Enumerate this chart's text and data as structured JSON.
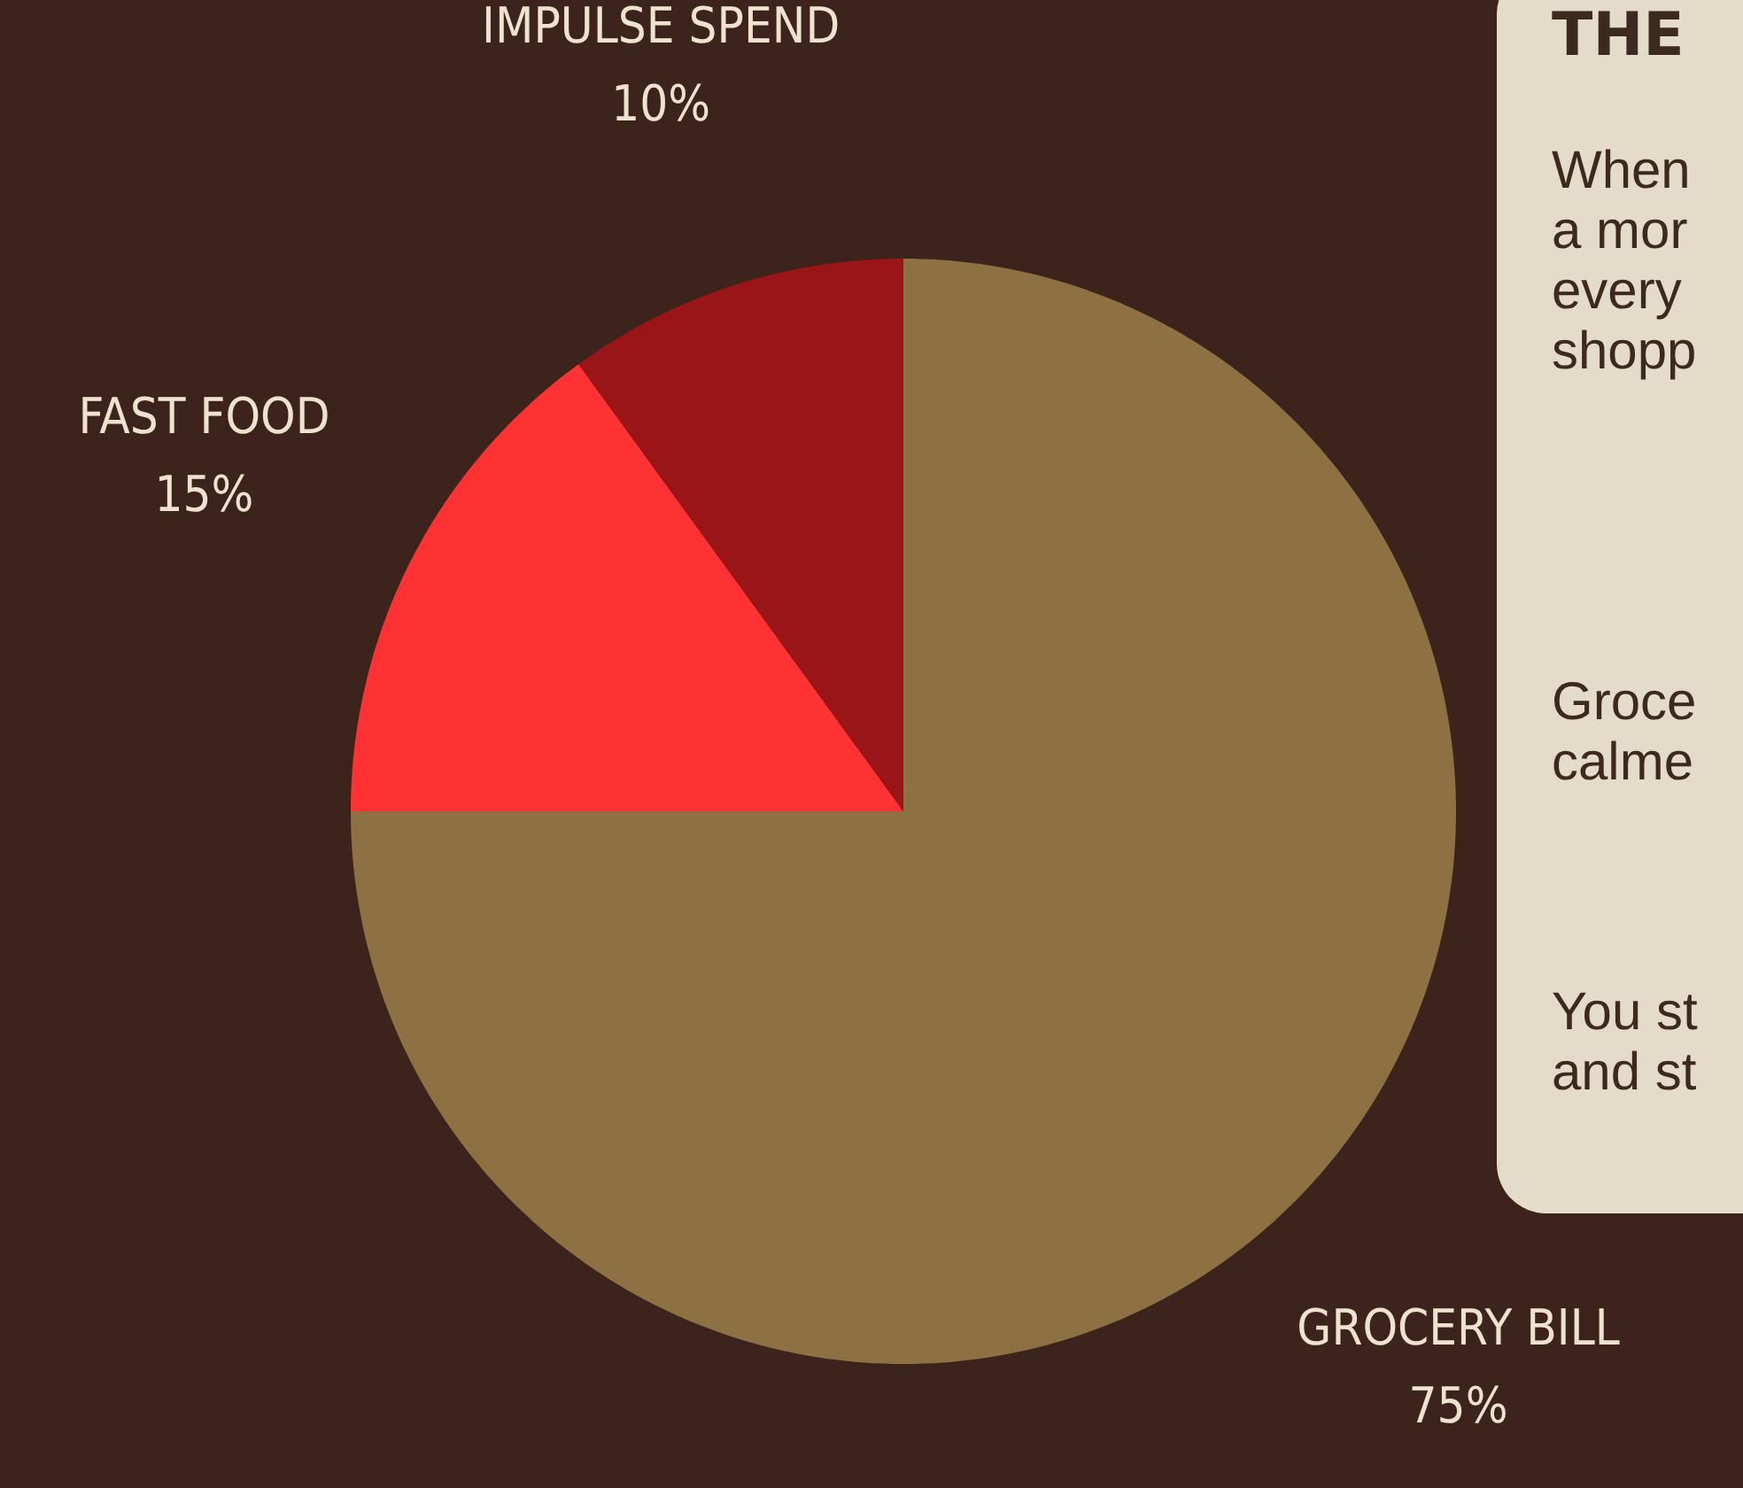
{
  "chart_data": {
    "type": "pie",
    "categories": [
      "GROCERY BILL",
      "FAST FOOD",
      "IMPULSE SPEND"
    ],
    "values": [
      75,
      15,
      10
    ],
    "colors": [
      "#8e7142",
      "#fe3232",
      "#9a1518"
    ],
    "value_labels": [
      "75%",
      "15%",
      "10%"
    ],
    "annotations": [
      "THE",
      "When\na mor\nevery\nshopp",
      "Groce\ncalme",
      "You st\nand st"
    ]
  }
}
